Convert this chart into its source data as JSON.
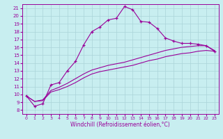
{
  "xlabel": "Windchill (Refroidissement éolien,°C)",
  "bg_color": "#c8eef0",
  "line_color": "#990099",
  "grid_color": "#aad4d8",
  "xlim": [
    -0.5,
    23.5
  ],
  "ylim": [
    7.5,
    21.5
  ],
  "xticks": [
    0,
    1,
    2,
    3,
    4,
    5,
    6,
    7,
    8,
    9,
    10,
    11,
    12,
    13,
    14,
    15,
    16,
    17,
    18,
    19,
    20,
    21,
    22,
    23
  ],
  "yticks": [
    8,
    9,
    10,
    11,
    12,
    13,
    14,
    15,
    16,
    17,
    18,
    19,
    20,
    21
  ],
  "curve1_x": [
    0,
    1,
    2,
    3,
    4,
    5,
    6,
    7,
    8,
    9,
    10,
    11,
    12,
    13,
    14,
    15,
    16,
    17,
    18,
    19,
    20,
    21,
    22,
    23
  ],
  "curve1_y": [
    9.8,
    8.5,
    8.8,
    11.2,
    11.5,
    13.0,
    14.2,
    16.3,
    18.0,
    18.6,
    19.5,
    19.7,
    21.2,
    20.8,
    19.3,
    19.2,
    18.4,
    17.2,
    16.8,
    16.5,
    16.5,
    16.4,
    16.2,
    15.5
  ],
  "curve2_x": [
    0,
    1,
    2,
    3,
    4,
    5,
    6,
    7,
    8,
    9,
    10,
    11,
    12,
    13,
    14,
    15,
    16,
    17,
    18,
    19,
    20,
    21,
    22,
    23
  ],
  "curve2_y": [
    9.8,
    9.1,
    9.2,
    10.3,
    10.6,
    11.0,
    11.5,
    12.1,
    12.6,
    12.9,
    13.1,
    13.3,
    13.5,
    13.7,
    14.0,
    14.3,
    14.5,
    14.8,
    15.0,
    15.2,
    15.3,
    15.5,
    15.6,
    15.5
  ],
  "curve3_x": [
    0,
    1,
    2,
    3,
    4,
    5,
    6,
    7,
    8,
    9,
    10,
    11,
    12,
    13,
    14,
    15,
    16,
    17,
    18,
    19,
    20,
    21,
    22,
    23
  ],
  "curve3_y": [
    9.8,
    9.1,
    9.3,
    10.5,
    10.9,
    11.4,
    12.0,
    12.6,
    13.1,
    13.4,
    13.7,
    13.9,
    14.1,
    14.4,
    14.7,
    15.0,
    15.3,
    15.6,
    15.8,
    16.0,
    16.1,
    16.2,
    16.2,
    15.6
  ]
}
